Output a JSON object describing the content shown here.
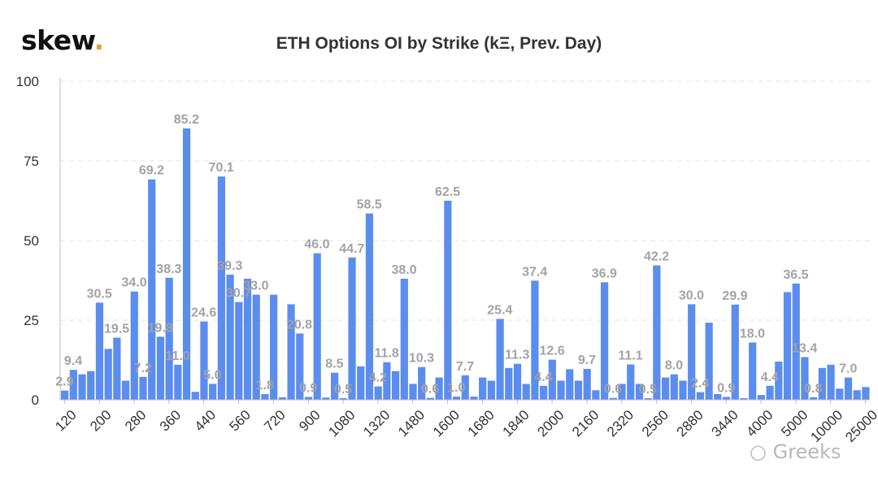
{
  "brand": {
    "name": "skew",
    "dot": "."
  },
  "watermark": "Greeks",
  "chart_data": {
    "type": "bar",
    "title": "ETH Options OI by Strike (kΞ, Prev. Day)",
    "ylim": [
      0,
      100
    ],
    "yticks": [
      0,
      25,
      50,
      75,
      100
    ],
    "grid": true,
    "bar_color": "#5b8def",
    "label_color": "#a3a3a3",
    "values": [
      2.9,
      9.4,
      8.0,
      9.0,
      30.5,
      16.0,
      19.5,
      6.0,
      34.0,
      7.2,
      69.2,
      19.8,
      38.3,
      11.0,
      85.2,
      2.5,
      24.6,
      5.0,
      70.1,
      39.3,
      30.7,
      38.0,
      33.0,
      1.8,
      33.0,
      0.8,
      30.0,
      20.8,
      0.9,
      46.0,
      0.7,
      8.5,
      0.5,
      44.7,
      10.5,
      58.5,
      4.2,
      11.8,
      9.0,
      38.0,
      5.0,
      10.3,
      0.6,
      7.0,
      62.5,
      1.0,
      7.7,
      1.0,
      7.0,
      6.0,
      25.4,
      10.0,
      11.3,
      5.0,
      37.4,
      4.4,
      12.6,
      6.0,
      9.6,
      6.0,
      9.7,
      3.0,
      36.9,
      0.6,
      5.0,
      11.1,
      5.0,
      0.5,
      42.2,
      7.0,
      8.0,
      6.0,
      30.0,
      2.4,
      24.2,
      1.8,
      0.9,
      29.9,
      0.5,
      18.0,
      1.5,
      4.4,
      12.0,
      33.8,
      36.5,
      13.4,
      0.8,
      10.0,
      11.0,
      3.5,
      7.0,
      3.0,
      4.0
    ],
    "data_labels": [
      {
        "i": 0,
        "text": "2.9"
      },
      {
        "i": 1,
        "text": "9.4"
      },
      {
        "i": 4,
        "text": "30.5"
      },
      {
        "i": 6,
        "text": "19.5"
      },
      {
        "i": 8,
        "text": "34.0"
      },
      {
        "i": 9,
        "text": "7.2"
      },
      {
        "i": 10,
        "text": "69.2"
      },
      {
        "i": 11,
        "text": "19.8"
      },
      {
        "i": 12,
        "text": "38.3"
      },
      {
        "i": 13,
        "text": "11.0"
      },
      {
        "i": 14,
        "text": "85.2"
      },
      {
        "i": 16,
        "text": "24.6"
      },
      {
        "i": 17,
        "text": "5.0"
      },
      {
        "i": 18,
        "text": "70.1"
      },
      {
        "i": 19,
        "text": "39.3"
      },
      {
        "i": 20,
        "text": "30.7"
      },
      {
        "i": 22,
        "text": "33.0"
      },
      {
        "i": 23,
        "text": "1.8"
      },
      {
        "i": 27,
        "text": "20.8"
      },
      {
        "i": 28,
        "text": "0.9"
      },
      {
        "i": 29,
        "text": "46.0"
      },
      {
        "i": 31,
        "text": "8.5"
      },
      {
        "i": 32,
        "text": "0.5"
      },
      {
        "i": 33,
        "text": "44.7"
      },
      {
        "i": 35,
        "text": "58.5"
      },
      {
        "i": 36,
        "text": "4.2"
      },
      {
        "i": 37,
        "text": "11.8"
      },
      {
        "i": 39,
        "text": "38.0"
      },
      {
        "i": 41,
        "text": "10.3"
      },
      {
        "i": 42,
        "text": "0.6"
      },
      {
        "i": 44,
        "text": "62.5"
      },
      {
        "i": 45,
        "text": "1.0"
      },
      {
        "i": 46,
        "text": "7.7"
      },
      {
        "i": 50,
        "text": "25.4"
      },
      {
        "i": 52,
        "text": "11.3"
      },
      {
        "i": 54,
        "text": "37.4"
      },
      {
        "i": 55,
        "text": "4.4"
      },
      {
        "i": 56,
        "text": "12.6"
      },
      {
        "i": 60,
        "text": "9.7"
      },
      {
        "i": 62,
        "text": "36.9"
      },
      {
        "i": 63,
        "text": "0.6"
      },
      {
        "i": 65,
        "text": "11.1"
      },
      {
        "i": 67,
        "text": "0.5"
      },
      {
        "i": 68,
        "text": "42.2"
      },
      {
        "i": 70,
        "text": "8.0"
      },
      {
        "i": 72,
        "text": "30.0"
      },
      {
        "i": 73,
        "text": "2.4"
      },
      {
        "i": 76,
        "text": "0.9"
      },
      {
        "i": 77,
        "text": "29.9"
      },
      {
        "i": 79,
        "text": "18.0"
      },
      {
        "i": 81,
        "text": "4.4"
      },
      {
        "i": 84,
        "text": "36.5"
      },
      {
        "i": 85,
        "text": "13.4"
      },
      {
        "i": 86,
        "text": "0.8"
      },
      {
        "i": 90,
        "text": "7.0"
      }
    ],
    "x_tick_labels": [
      {
        "i": 0,
        "text": "120"
      },
      {
        "i": 4,
        "text": "200"
      },
      {
        "i": 8,
        "text": "280"
      },
      {
        "i": 12,
        "text": "360"
      },
      {
        "i": 16,
        "text": "440"
      },
      {
        "i": 20,
        "text": "560"
      },
      {
        "i": 24,
        "text": "720"
      },
      {
        "i": 28,
        "text": "900"
      },
      {
        "i": 32,
        "text": "1080"
      },
      {
        "i": 36,
        "text": "1320"
      },
      {
        "i": 40,
        "text": "1480"
      },
      {
        "i": 44,
        "text": "1600"
      },
      {
        "i": 48,
        "text": "1680"
      },
      {
        "i": 52,
        "text": "1840"
      },
      {
        "i": 56,
        "text": "2000"
      },
      {
        "i": 60,
        "text": "2160"
      },
      {
        "i": 64,
        "text": "2320"
      },
      {
        "i": 68,
        "text": "2560"
      },
      {
        "i": 72,
        "text": "2880"
      },
      {
        "i": 76,
        "text": "3440"
      },
      {
        "i": 80,
        "text": "4000"
      },
      {
        "i": 84,
        "text": "5000"
      },
      {
        "i": 88,
        "text": "10000"
      },
      {
        "i": 92,
        "text": "25000"
      }
    ]
  }
}
